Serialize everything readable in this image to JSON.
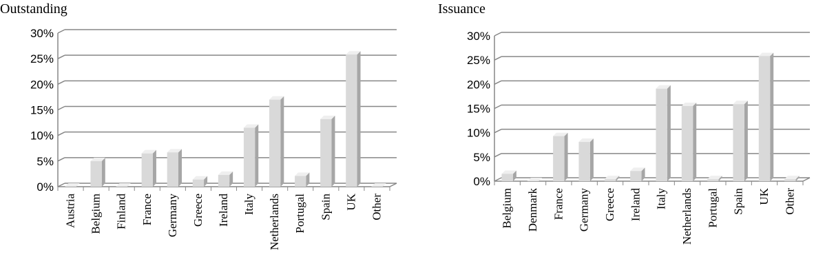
{
  "panels": {
    "left": {
      "title": "Outstanding"
    },
    "right": {
      "title": "Issuance"
    }
  },
  "colors": {
    "bar_front": "#d9d9d9",
    "bar_side": "#a6a6a6",
    "bar_top": "#efefef",
    "gridline": "#868686",
    "axis": "#868686"
  },
  "chart_data": [
    {
      "type": "bar",
      "title": "Outstanding",
      "categories": [
        "Austria",
        "Belgium",
        "Finland",
        "France",
        "Germany",
        "Greece",
        "Ireland",
        "Italy",
        "Netherlands",
        "Portugal",
        "Spain",
        "UK",
        "Other"
      ],
      "values": [
        0.0,
        5.0,
        0.0,
        6.5,
        6.7,
        1.4,
        2.3,
        11.5,
        17.0,
        2.1,
        13.2,
        25.8,
        0.0
      ],
      "unit": "%",
      "ylim": [
        0,
        30
      ],
      "yticks": [
        "0%",
        "5%",
        "10%",
        "15%",
        "20%",
        "25%",
        "30%"
      ],
      "grid": true,
      "legend": "none"
    },
    {
      "type": "bar",
      "title": "Issuance",
      "categories": [
        "Belgium",
        "Denmark",
        "France",
        "Germany",
        "Greece",
        "Ireland",
        "Italy",
        "Netherlands",
        "Portugal",
        "Spain",
        "UK",
        "Other"
      ],
      "values": [
        1.5,
        0.0,
        9.3,
        8.1,
        0.4,
        2.1,
        19.1,
        15.5,
        0.4,
        15.9,
        25.8,
        0.4
      ],
      "unit": "%",
      "ylim": [
        0,
        30
      ],
      "yticks": [
        "0%",
        "5%",
        "10%",
        "15%",
        "20%",
        "25%",
        "30%"
      ],
      "grid": true,
      "legend": "none"
    }
  ]
}
